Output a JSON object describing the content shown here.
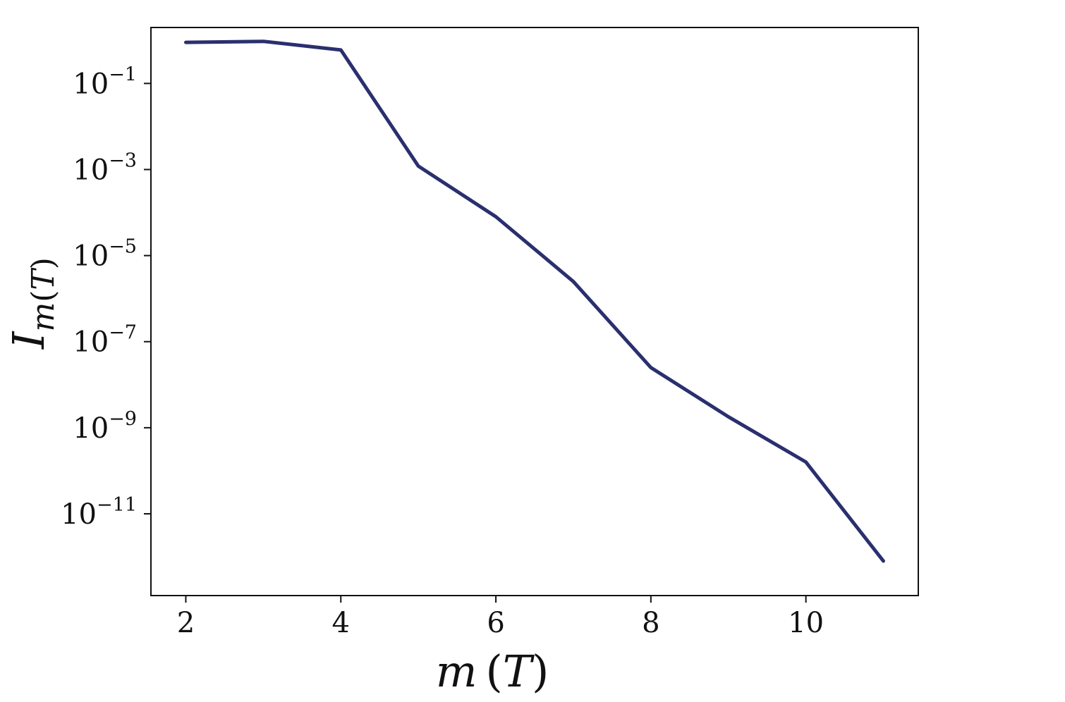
{
  "chart_data": {
    "type": "line",
    "xlabel": "m (T)",
    "ylabel": "I_m(T)",
    "y_scale": "log",
    "xlim": [
      1.55,
      11.45
    ],
    "ylim_log10": [
      -12.9,
      0.3
    ],
    "grid": false,
    "x_ticks": [
      2,
      4,
      6,
      8,
      10
    ],
    "x_tick_labels": [
      "2",
      "4",
      "6",
      "8",
      "10"
    ],
    "y_ticks_log10": [
      -1,
      -3,
      -5,
      -7,
      -9,
      -11
    ],
    "y_tick_labels": [
      {
        "base": "10",
        "exp": "−1"
      },
      {
        "base": "10",
        "exp": "−3"
      },
      {
        "base": "10",
        "exp": "−5"
      },
      {
        "base": "10",
        "exp": "−7"
      },
      {
        "base": "10",
        "exp": "−9"
      },
      {
        "base": "10",
        "exp": "−11"
      }
    ],
    "series": [
      {
        "color": "#2a2f6e",
        "x": [
          2,
          3,
          4,
          5,
          6,
          7,
          8,
          9,
          10,
          11
        ],
        "y": [
          0.9,
          0.95,
          0.6,
          0.0012,
          8e-05,
          2.5e-06,
          2.5e-08,
          1.8e-09,
          1.6e-10,
          8e-13
        ]
      }
    ]
  }
}
